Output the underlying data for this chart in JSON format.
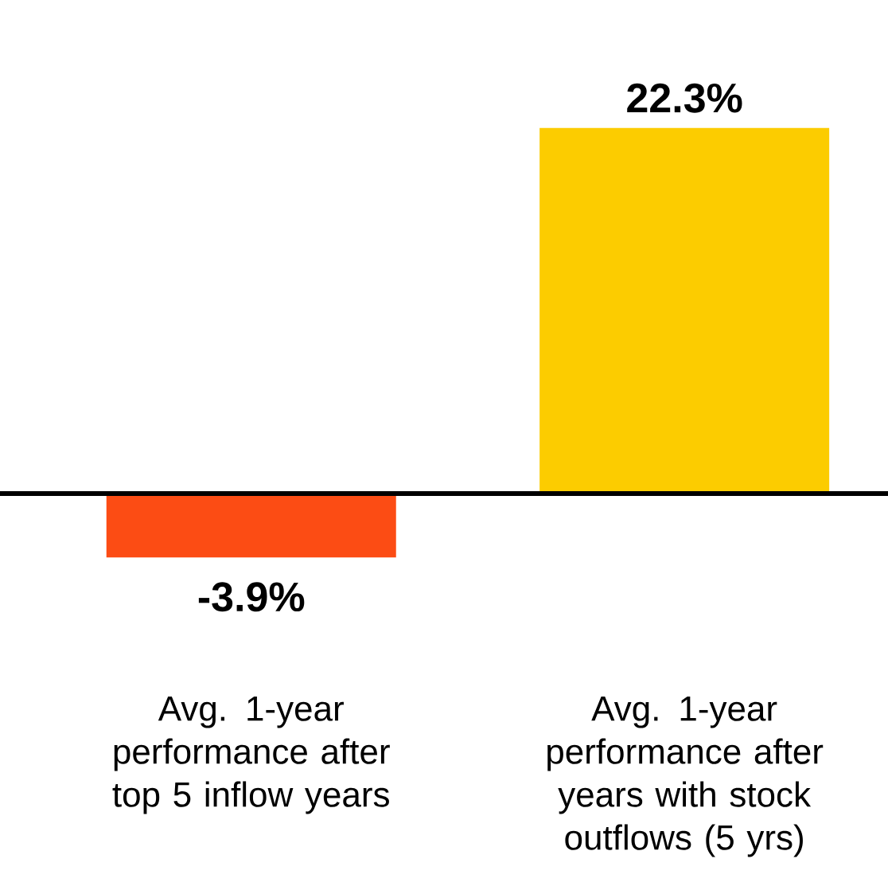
{
  "chart_data": {
    "type": "bar",
    "categories": [
      "Avg. 1-year performance after top 5 inflow years",
      "Avg. 1-year performance after years with stock outflows (5 yrs)"
    ],
    "values": [
      -3.9,
      22.3
    ],
    "colors": [
      "#fc4c14",
      "#fccc00"
    ],
    "value_labels": [
      "-3.9%",
      "22.3%"
    ]
  }
}
